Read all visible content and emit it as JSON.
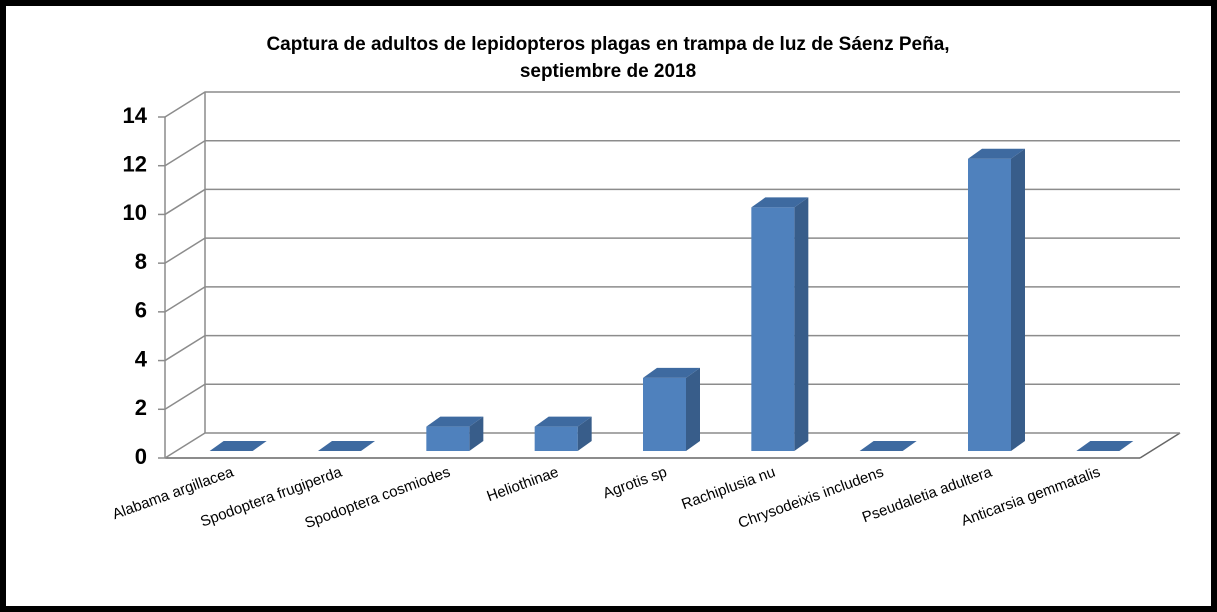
{
  "chart_data": {
    "type": "bar3d",
    "title": [
      "Captura de adultos de lepidopteros plagas en trampa de luz de Sáenz Peña,",
      "septiembre de 2018"
    ],
    "categories": [
      "Alabama argillacea",
      "Spodoptera frugiperda",
      "Spodoptera cosmiodes",
      "Heliothinae",
      "Agrotis sp",
      "Rachiplusia nu",
      "Chrysodeixis includens",
      "Pseudaletia adultera",
      "Anticarsia gemmatalis"
    ],
    "values": [
      0,
      0,
      1,
      1,
      3,
      10,
      0,
      12,
      0
    ],
    "color": "#4f81bd",
    "ylim": [
      0,
      14
    ],
    "yticks": [
      0,
      2,
      4,
      6,
      8,
      10,
      12,
      14
    ],
    "grid": true
  }
}
